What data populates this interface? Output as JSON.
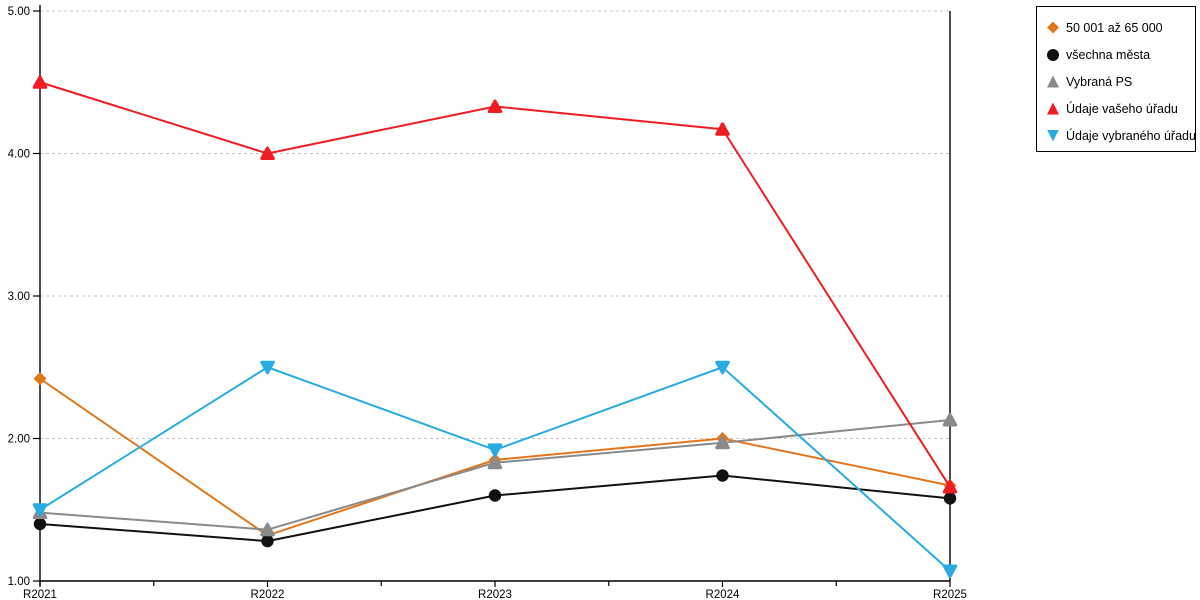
{
  "chart_data": {
    "type": "line",
    "categories": [
      "R2021",
      "R2022",
      "R2023",
      "R2024",
      "R2025"
    ],
    "series": [
      {
        "name": "50 001 až 65 000",
        "color": "#E2761D",
        "marker": "diamond",
        "values": [
          2.42,
          1.32,
          1.85,
          2.0,
          1.67
        ]
      },
      {
        "name": "všechna města",
        "color": "#111111",
        "marker": "circle",
        "values": [
          1.4,
          1.28,
          1.6,
          1.74,
          1.58
        ]
      },
      {
        "name": "Vybraná PS",
        "color": "#8A8A8A",
        "marker": "tri-up",
        "values": [
          1.48,
          1.36,
          1.83,
          1.97,
          2.13
        ]
      },
      {
        "name": "Údaje vašeho úřadu",
        "color": "#EE1C25",
        "marker": "tri-up",
        "values": [
          4.5,
          4.0,
          4.33,
          4.17,
          1.66
        ]
      },
      {
        "name": "Údaje vybraného úřadu",
        "color": "#29ABE2",
        "marker": "tri-down",
        "values": [
          1.5,
          2.5,
          1.92,
          2.5,
          1.07
        ]
      }
    ],
    "ylim": [
      1,
      5
    ],
    "yticks": [
      1,
      2,
      3,
      4,
      5
    ],
    "ytick_labels": [
      "1.00",
      "2.00",
      "3.00",
      "4.00",
      "5.00"
    ],
    "grid": "horizontal-dashed",
    "gridline_color": "#C8C8C8",
    "axis_color": "#000000",
    "legend_position": "top-right",
    "title": "",
    "xlabel": "",
    "ylabel": ""
  }
}
